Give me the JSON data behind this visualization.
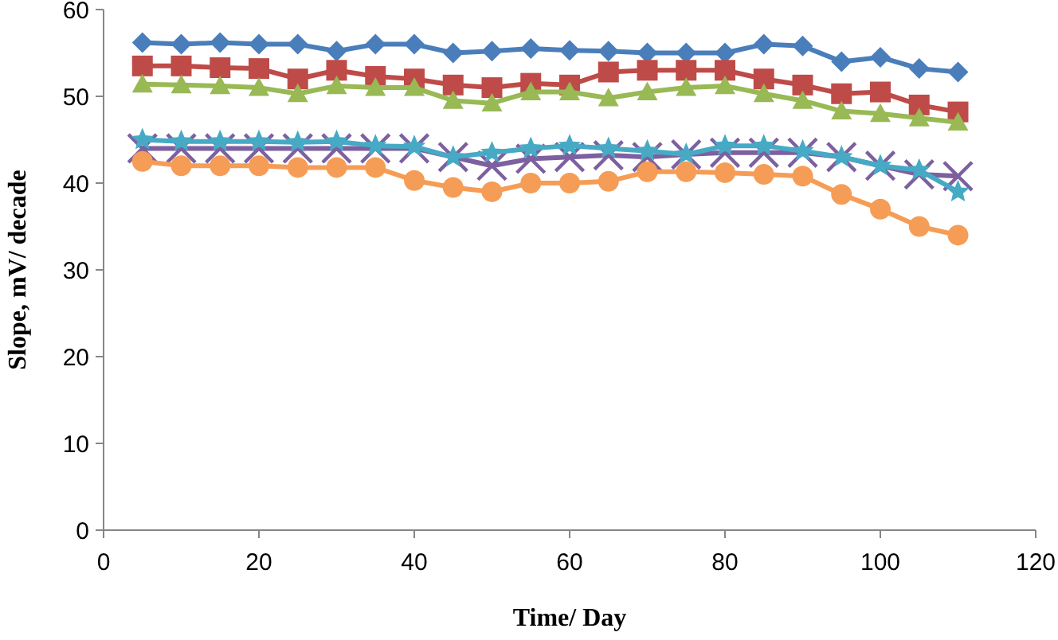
{
  "chart_data": {
    "type": "line",
    "xlabel": "Time/ Day",
    "ylabel": "Slope, mV/ decade",
    "x": [
      5,
      10,
      15,
      20,
      25,
      30,
      35,
      40,
      45,
      50,
      55,
      60,
      65,
      70,
      75,
      80,
      85,
      90,
      95,
      100,
      105,
      110
    ],
    "xlim": [
      0,
      120
    ],
    "xticks": [
      0,
      20,
      40,
      60,
      80,
      100,
      120
    ],
    "ylim": [
      0,
      60
    ],
    "yticks": [
      0,
      10,
      20,
      30,
      40,
      50,
      60
    ],
    "grid": false,
    "series": [
      {
        "color": "#4a7ebb",
        "marker": "diamond",
        "values": [
          56.2,
          56,
          56.2,
          56,
          56,
          55.2,
          56,
          56,
          55,
          55.2,
          55.5,
          55.3,
          55.2,
          55,
          55,
          55,
          56,
          55.8,
          54,
          54.5,
          53.2,
          52.8
        ]
      },
      {
        "color": "#be4b48",
        "marker": "square",
        "values": [
          53.5,
          53.5,
          53.3,
          53.2,
          52,
          53,
          52.3,
          52,
          51.3,
          51,
          51.5,
          51.3,
          52.8,
          53,
          53,
          53,
          52,
          51.3,
          50.3,
          50.5,
          49,
          48.2
        ]
      },
      {
        "color": "#98b954",
        "marker": "triangle",
        "values": [
          51.4,
          51.3,
          51.2,
          51,
          50.3,
          51.2,
          51,
          51,
          49.5,
          49.2,
          50.5,
          50.5,
          49.8,
          50.5,
          51,
          51.2,
          50.3,
          49.5,
          48.3,
          48,
          47.5,
          47
        ]
      },
      {
        "color": "#7d60a0",
        "marker": "cross",
        "values": [
          44,
          44,
          44,
          44,
          44,
          44,
          44,
          44,
          43,
          42,
          42.8,
          43,
          43.2,
          43,
          43.3,
          43.5,
          43.5,
          43.5,
          43,
          42,
          41,
          40.8
        ]
      },
      {
        "color": "#46aac5",
        "marker": "star",
        "values": [
          45,
          44.8,
          44.8,
          44.8,
          44.7,
          44.8,
          44.3,
          44.2,
          43,
          43.5,
          44,
          44.3,
          44,
          43.7,
          43.3,
          44.3,
          44.3,
          43.7,
          43,
          42,
          41.5,
          39
        ]
      },
      {
        "color": "#f59d56",
        "marker": "circle",
        "values": [
          42.5,
          42,
          42,
          42,
          41.8,
          41.8,
          41.8,
          40.3,
          39.5,
          39,
          40,
          40,
          40.2,
          41.3,
          41.3,
          41.2,
          41,
          40.8,
          38.7,
          37,
          35,
          34
        ]
      }
    ]
  }
}
